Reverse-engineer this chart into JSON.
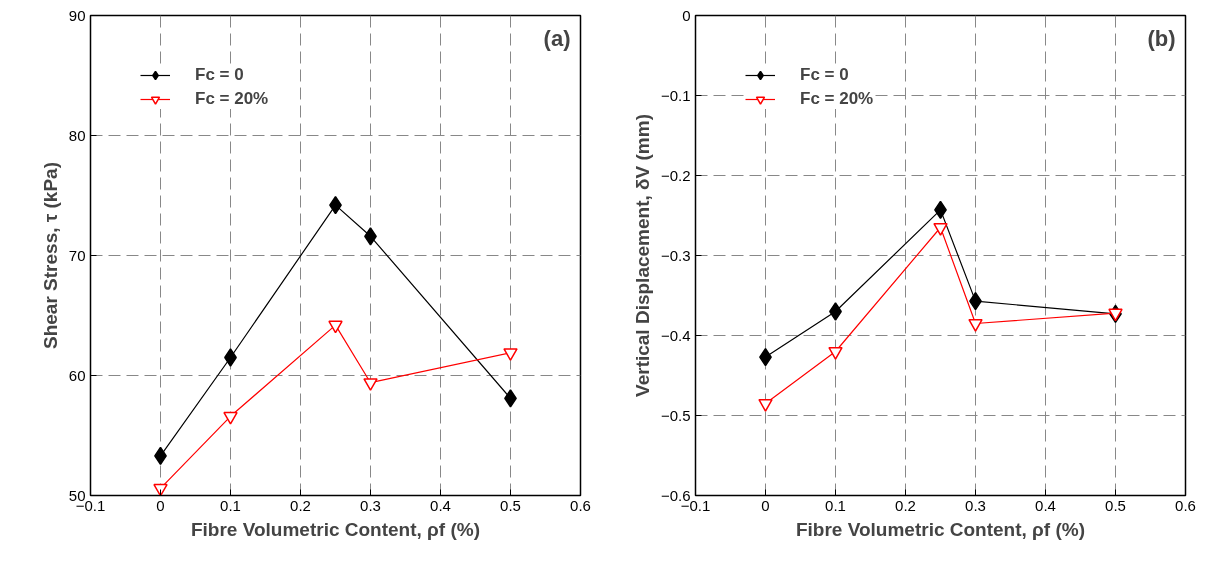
{
  "chart_data": [
    {
      "type": "line",
      "xlabel": "Fibre Volumetric Content, ρf (%)",
      "ylabel": "Shear Stress, τ (kPa)",
      "annotations": [
        "(a)"
      ],
      "x": [
        0,
        0.1,
        0.25,
        0.3,
        0.5
      ],
      "xlim": [
        -0.1,
        0.6
      ],
      "xticks": [
        -0.1,
        0,
        0.1,
        0.2,
        0.3,
        0.4,
        0.5,
        0.6
      ],
      "ylim": [
        50,
        90
      ],
      "yticks": [
        50,
        60,
        70,
        80,
        90
      ],
      "grid": true,
      "legend": "top left",
      "series": [
        {
          "name": "Fc = 0",
          "color": "#000000",
          "marker": "diamond",
          "values": [
            53.3,
            61.5,
            74.2,
            71.6,
            58.1
          ]
        },
        {
          "name": "Fc = 20%",
          "color": "#ff0000",
          "marker": "triangle",
          "values": [
            50.6,
            56.6,
            64.2,
            59.4,
            61.9
          ]
        }
      ]
    },
    {
      "type": "line",
      "xlabel": "Fibre Volumetric Content, ρf (%)",
      "ylabel": "Vertical Displacement, δV (mm)",
      "annotations": [
        "(b)"
      ],
      "x": [
        0,
        0.1,
        0.25,
        0.3,
        0.5
      ],
      "xlim": [
        -0.1,
        0.6
      ],
      "xticks": [
        -0.1,
        0,
        0.1,
        0.2,
        0.3,
        0.4,
        0.5,
        0.6
      ],
      "ylim": [
        -0.6,
        0
      ],
      "yticks": [
        -0.6,
        -0.5,
        -0.4,
        -0.3,
        -0.2,
        -0.1,
        0
      ],
      "grid": true,
      "legend": "top left",
      "series": [
        {
          "name": "Fc = 0",
          "color": "#000000",
          "marker": "diamond",
          "values": [
            -0.427,
            -0.37,
            -0.243,
            -0.357,
            -0.373
          ]
        },
        {
          "name": "Fc = 20%",
          "color": "#ff0000",
          "marker": "triangle",
          "values": [
            -0.485,
            -0.42,
            -0.265,
            -0.385,
            -0.372
          ]
        }
      ]
    }
  ]
}
